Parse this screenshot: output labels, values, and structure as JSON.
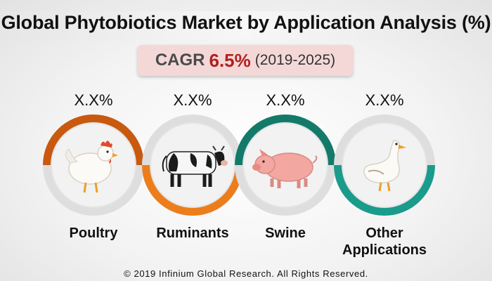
{
  "title": "Global Phytobiotics Market by Application Analysis (%)",
  "cagr": {
    "label": "CAGR",
    "value": "6.5%",
    "period": "(2019-2025)"
  },
  "segments": [
    {
      "label": "Poultry",
      "percent": "X.X%",
      "icon": "chicken-icon",
      "color": "#c8590f"
    },
    {
      "label": "Ruminants",
      "percent": "X.X%",
      "icon": "cow-icon",
      "color": "#ec7d1c"
    },
    {
      "label": "Swine",
      "percent": "X.X%",
      "icon": "pig-icon",
      "color": "#137a6a"
    },
    {
      "label": "Other Applications",
      "percent": "X.X%",
      "icon": "goose-icon",
      "color": "#1a9b8b"
    }
  ],
  "footer": "© 2019 Infinium Global Research. All Rights Reserved."
}
